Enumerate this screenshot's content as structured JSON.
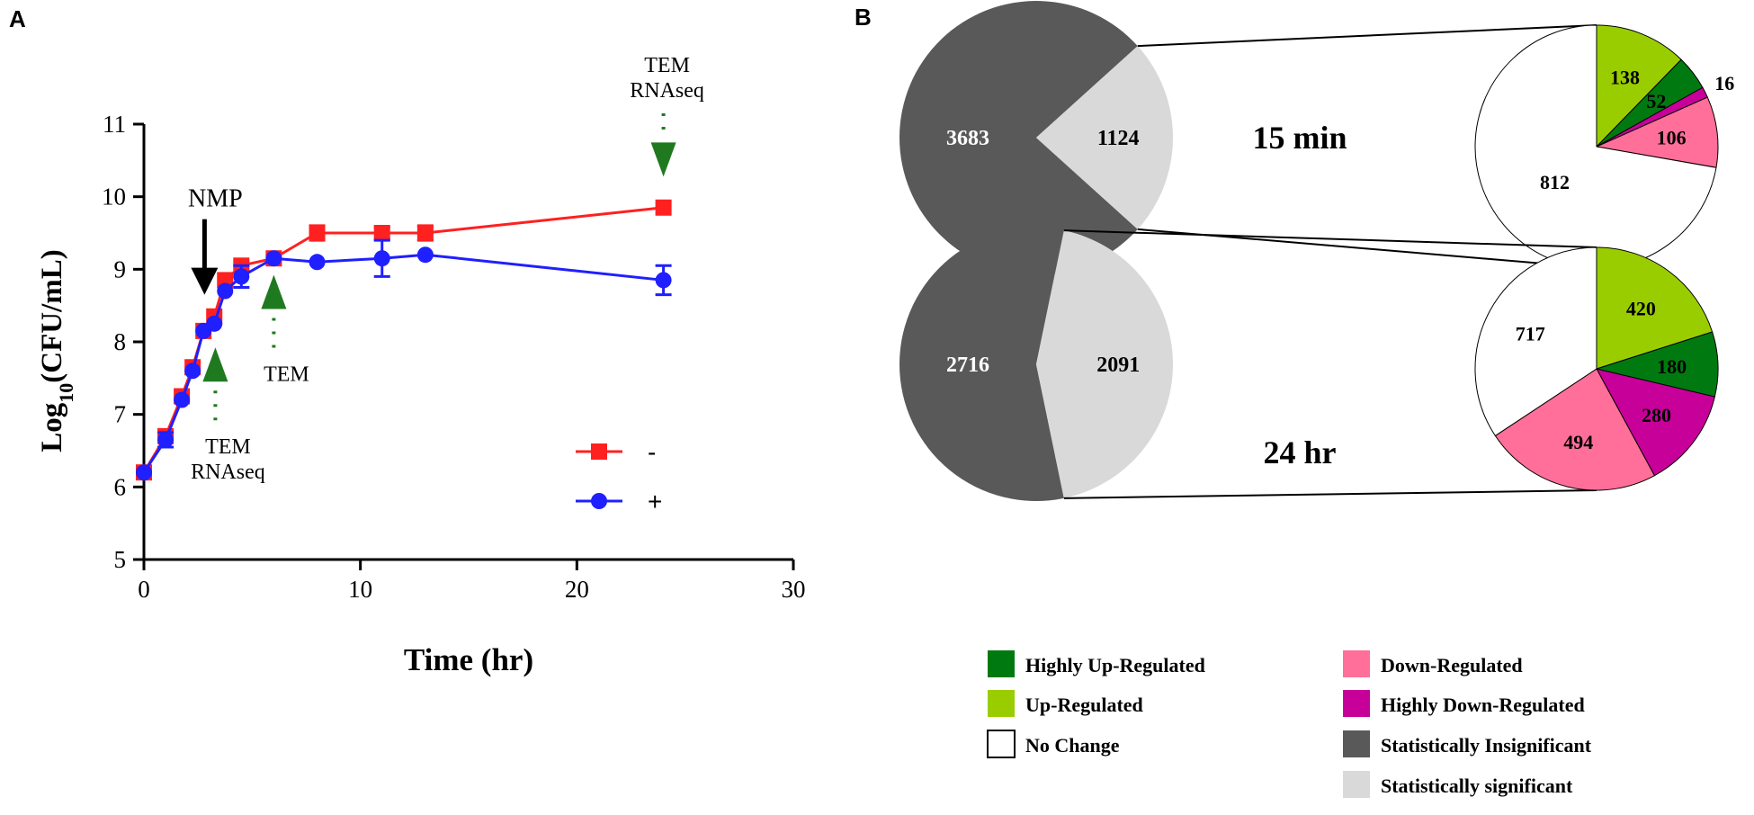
{
  "chart_data": [
    {
      "type": "line",
      "panel_label": "A",
      "xlabel": "Time (hr)",
      "ylabel_prefix": "Log",
      "ylabel_sub": "10",
      "ylabel_suffix": "(CFU/mL)",
      "xlim": [
        0,
        30
      ],
      "ylim": [
        5,
        11
      ],
      "xticks": [
        0,
        10,
        20,
        30
      ],
      "yticks": [
        5,
        6,
        7,
        8,
        9,
        10,
        11
      ],
      "legend_position": "bottom-right",
      "series": [
        {
          "name": "-",
          "color": "#ff2020",
          "marker": "square",
          "x": [
            0,
            1,
            1.75,
            2.25,
            2.75,
            3.25,
            3.75,
            4.5,
            6,
            8,
            11,
            13,
            24
          ],
          "y": [
            6.2,
            6.7,
            7.25,
            7.65,
            8.15,
            8.35,
            8.85,
            9.05,
            9.15,
            9.5,
            9.5,
            9.5,
            9.85
          ],
          "err": [
            0,
            0,
            0,
            0,
            0,
            0,
            0,
            0,
            0,
            0.1,
            0.08,
            0.1,
            0
          ]
        },
        {
          "name": "+",
          "color": "#1f1fff",
          "marker": "circle",
          "x": [
            0,
            1,
            1.75,
            2.25,
            2.75,
            3.25,
            3.75,
            4.5,
            6,
            8,
            11,
            13,
            24
          ],
          "y": [
            6.2,
            6.65,
            7.2,
            7.6,
            8.15,
            8.25,
            8.7,
            8.9,
            9.15,
            9.1,
            9.15,
            9.2,
            8.85
          ],
          "err": [
            0,
            0.1,
            0,
            0,
            0,
            0,
            0,
            0.15,
            0,
            0,
            0.25,
            0,
            0.2
          ]
        }
      ],
      "annotations": [
        {
          "id": "nmp",
          "label": "NMP",
          "x": 2.8,
          "y": 8.65,
          "kind": "black-arrow"
        },
        {
          "id": "tem-rnaseq-early",
          "label_line1": "TEM",
          "label_line2": "RNAseq",
          "x": 3.3,
          "y": 7.7,
          "kind": "green-up"
        },
        {
          "id": "tem-mid",
          "label_line1": "TEM",
          "x": 6.0,
          "y": 8.7,
          "kind": "green-up"
        },
        {
          "id": "tem-rnaseq-late",
          "label_line1": "TEM",
          "label_line2": "RNAseq",
          "x": 24.0,
          "y": 10.5,
          "kind": "green-down"
        }
      ]
    },
    {
      "type": "pie",
      "panel_label": "B",
      "title": "15 min",
      "overall": [
        {
          "label": "Statistically Insignificant",
          "value": 3683,
          "color": "#595959"
        },
        {
          "label": "Statistically significant",
          "value": 1124,
          "color": "#d9d9d9"
        }
      ],
      "breakdown": [
        {
          "label": "No Change",
          "value": 812,
          "color": "#ffffff"
        },
        {
          "label": "Up-Regulated",
          "value": 138,
          "color": "#9acd00"
        },
        {
          "label": "Highly Up-Regulated",
          "value": 52,
          "color": "#007a10"
        },
        {
          "label": "Highly Down-Regulated",
          "value": 16,
          "color": "#c8009a"
        },
        {
          "label": "Down-Regulated",
          "value": 106,
          "color": "#ff6f9a"
        }
      ]
    },
    {
      "type": "pie",
      "title": "24 hr",
      "overall": [
        {
          "label": "Statistically Insignificant",
          "value": 2716,
          "color": "#595959"
        },
        {
          "label": "Statistically significant",
          "value": 2091,
          "color": "#d9d9d9"
        }
      ],
      "breakdown": [
        {
          "label": "No Change",
          "value": 717,
          "color": "#ffffff"
        },
        {
          "label": "Up-Regulated",
          "value": 420,
          "color": "#9acd00"
        },
        {
          "label": "Highly Up-Regulated",
          "value": 180,
          "color": "#007a10"
        },
        {
          "label": "Highly Down-Regulated",
          "value": 280,
          "color": "#c8009a"
        },
        {
          "label": "Down-Regulated",
          "value": 494,
          "color": "#ff6f9a"
        }
      ]
    }
  ],
  "legend": {
    "items": [
      {
        "label": "Highly Up-Regulated",
        "color": "#007a10"
      },
      {
        "label": "Up-Regulated",
        "color": "#9acd00"
      },
      {
        "label": "No Change",
        "color": "#ffffff"
      },
      {
        "label": "Down-Regulated",
        "color": "#ff6f9a"
      },
      {
        "label": "Highly Down-Regulated",
        "color": "#c8009a"
      },
      {
        "label": "Statistically Insignificant",
        "color": "#595959"
      },
      {
        "label": "Statistically significant",
        "color": "#d9d9d9"
      }
    ]
  }
}
